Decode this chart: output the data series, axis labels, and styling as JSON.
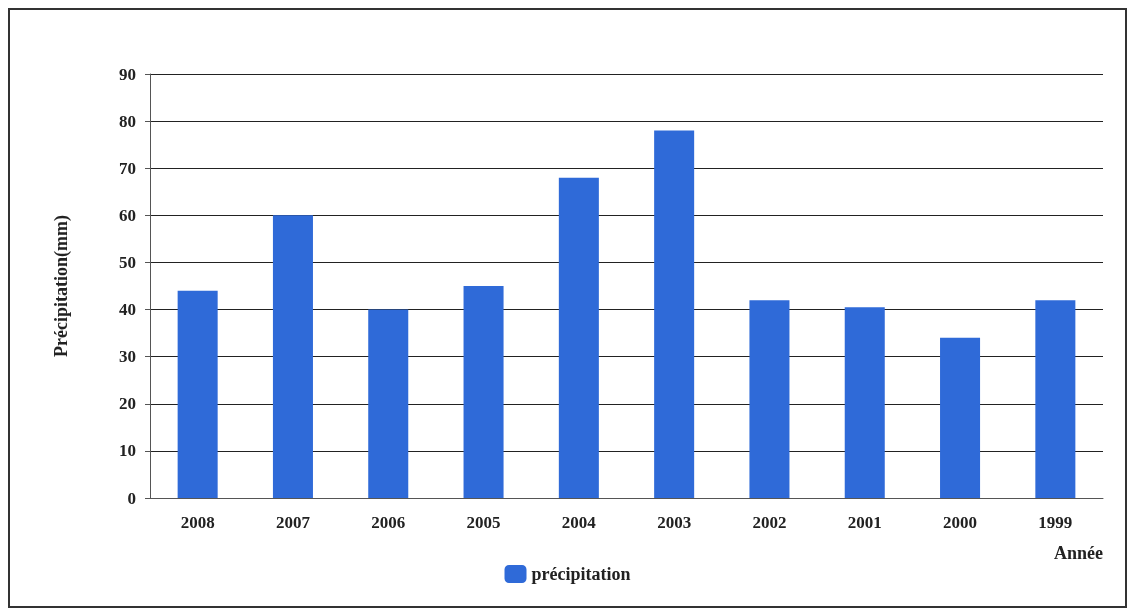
{
  "chart_data": {
    "type": "bar",
    "ylabel": "Précipitation(mm)",
    "xlabel": "Année",
    "categories": [
      "2008",
      "2007",
      "2006",
      "2005",
      "2004",
      "2003",
      "2002",
      "2001",
      "2000",
      "1999"
    ],
    "series": [
      {
        "name": "précipitation",
        "color": "#2f6ad8",
        "values": [
          44,
          60,
          40,
          45,
          68,
          78,
          42,
          40.5,
          34,
          42
        ]
      }
    ],
    "ylim": [
      0,
      90
    ],
    "yticks": [
      0,
      10,
      20,
      30,
      40,
      50,
      60,
      70,
      80,
      90
    ],
    "grid": "y",
    "legend": "bottom"
  }
}
